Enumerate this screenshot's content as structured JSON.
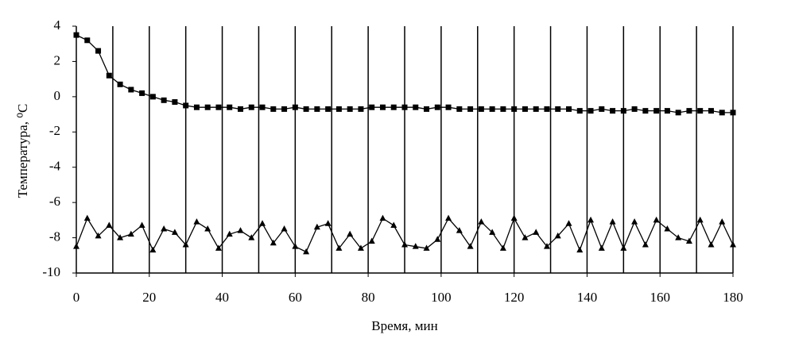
{
  "chart_data": {
    "type": "line",
    "ylabel": "Температура, ⁰С",
    "xlabel": "Время, мин",
    "x": [
      0,
      3,
      6,
      9,
      12,
      15,
      18,
      21,
      24,
      27,
      30,
      33,
      36,
      39,
      42,
      45,
      48,
      51,
      54,
      57,
      60,
      63,
      66,
      69,
      72,
      75,
      78,
      81,
      84,
      87,
      90,
      93,
      96,
      99,
      102,
      105,
      108,
      111,
      114,
      117,
      120,
      123,
      126,
      129,
      132,
      135,
      138,
      141,
      144,
      147,
      150,
      153,
      156,
      159,
      162,
      165,
      168,
      171,
      174,
      177,
      180
    ],
    "series": [
      {
        "color": "#000000",
        "marker": "square",
        "values": [
          3.5,
          3.2,
          2.6,
          1.2,
          0.7,
          0.4,
          0.2,
          0.0,
          -0.2,
          -0.3,
          -0.5,
          -0.6,
          -0.6,
          -0.6,
          -0.6,
          -0.7,
          -0.6,
          -0.6,
          -0.7,
          -0.7,
          -0.6,
          -0.7,
          -0.7,
          -0.7,
          -0.7,
          -0.7,
          -0.7,
          -0.6,
          -0.6,
          -0.6,
          -0.6,
          -0.6,
          -0.7,
          -0.6,
          -0.6,
          -0.7,
          -0.7,
          -0.7,
          -0.7,
          -0.7,
          -0.7,
          -0.7,
          -0.7,
          -0.7,
          -0.7,
          -0.7,
          -0.8,
          -0.8,
          -0.7,
          -0.8,
          -0.8,
          -0.7,
          -0.8,
          -0.8,
          -0.8,
          -0.9,
          -0.8,
          -0.8,
          -0.8,
          -0.9,
          -0.9
        ]
      },
      {
        "color": "#000000",
        "marker": "triangle",
        "values": [
          -8.5,
          -6.9,
          -7.9,
          -7.3,
          -8.0,
          -7.8,
          -7.3,
          -8.7,
          -7.5,
          -7.7,
          -8.4,
          -7.1,
          -7.5,
          -8.6,
          -7.8,
          -7.6,
          -8.0,
          -7.2,
          -8.3,
          -7.5,
          -8.5,
          -8.8,
          -7.4,
          -7.2,
          -8.6,
          -7.8,
          -8.6,
          -8.2,
          -6.9,
          -7.3,
          -8.4,
          -8.5,
          -8.6,
          -8.1,
          -6.9,
          -7.6,
          -8.5,
          -7.1,
          -7.7,
          -8.6,
          -6.9,
          -8.0,
          -7.7,
          -8.5,
          -7.9,
          -7.2,
          -8.7,
          -7.0,
          -8.6,
          -7.1,
          -8.6,
          -7.1,
          -8.4,
          -7.0,
          -7.5,
          -8.0,
          -8.2,
          -7.0,
          -8.4,
          -7.1,
          -8.4
        ]
      }
    ],
    "xlim": [
      0,
      180
    ],
    "xticks": [
      0,
      20,
      40,
      60,
      80,
      100,
      120,
      140,
      160,
      180
    ],
    "xgrid": [
      10,
      20,
      30,
      40,
      50,
      60,
      70,
      80,
      90,
      100,
      110,
      120,
      130,
      140,
      150,
      160,
      170,
      180
    ],
    "ylim": [
      -10,
      4
    ],
    "yticks": [
      -10,
      -8,
      -6,
      -4,
      -2,
      0,
      2,
      4
    ]
  }
}
